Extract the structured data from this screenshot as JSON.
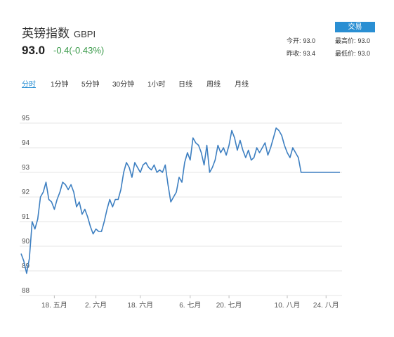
{
  "header": {
    "name": "英镑指数",
    "code": "GBPI",
    "price": "93.0",
    "change": "-0.4(-0.43%)",
    "trade_label": "交易",
    "stats": [
      {
        "label": "今开:",
        "value": "93.0"
      },
      {
        "label": "最高价:",
        "value": "93.0"
      },
      {
        "label": "昨收:",
        "value": "93.4"
      },
      {
        "label": "最低价:",
        "value": "93.0"
      }
    ]
  },
  "tabs": [
    "分时",
    "1分钟",
    "5分钟",
    "30分钟",
    "1小时",
    "日线",
    "周线",
    "月线"
  ],
  "active_tab": 0,
  "colors": {
    "line": "#3d7fc1",
    "accent": "#2a8fd3",
    "down": "#3a9a4a",
    "grid": "#e4e4e4"
  },
  "chart_data": {
    "type": "line",
    "title": "",
    "xlabel": "",
    "ylabel": "",
    "ylim": [
      88,
      95.5
    ],
    "yticks": [
      88,
      89,
      90,
      91,
      92,
      93,
      94,
      95
    ],
    "ytick_labels": [
      "88",
      "89",
      "90",
      "91",
      "92",
      "93",
      "94",
      "95"
    ],
    "xticks": [
      {
        "label": "18. 五月",
        "x": 12
      },
      {
        "label": "2. 六月",
        "x": 27
      },
      {
        "label": "18. 六月",
        "x": 43
      },
      {
        "label": "6. 七月",
        "x": 61
      },
      {
        "label": "20. 七月",
        "x": 75
      },
      {
        "label": "10. 八月",
        "x": 96
      },
      {
        "label": "24. 八月",
        "x": 110
      }
    ],
    "series": [
      {
        "x": [
          0,
          1,
          2,
          3,
          4,
          5,
          6,
          7,
          8,
          9,
          10,
          11,
          12,
          13,
          14,
          15,
          16,
          17,
          18,
          19,
          20,
          21,
          22,
          23,
          24,
          25,
          26,
          27,
          28,
          29,
          30,
          31,
          32,
          33,
          34,
          35,
          36,
          37,
          38,
          39,
          40,
          41,
          42,
          43,
          44,
          45,
          46,
          47,
          48,
          49,
          50,
          51,
          52,
          53,
          54,
          55,
          56,
          57,
          58,
          59,
          60,
          61,
          62,
          63,
          64,
          65,
          66,
          67,
          68,
          69,
          70,
          71,
          72,
          73,
          74,
          75,
          76,
          77,
          78,
          79,
          80,
          81,
          82,
          83,
          84,
          85,
          86,
          87,
          88,
          89,
          90,
          91,
          92,
          93,
          94,
          95,
          96,
          97,
          98,
          99,
          100,
          101,
          102,
          103,
          104,
          105,
          106,
          107,
          108,
          109,
          110,
          111,
          112,
          113,
          114,
          115
        ],
        "values": [
          89.7,
          89.4,
          88.9,
          89.5,
          91.0,
          90.7,
          91.1,
          92.0,
          92.2,
          92.6,
          91.9,
          91.8,
          91.5,
          91.9,
          92.2,
          92.6,
          92.5,
          92.3,
          92.5,
          92.2,
          91.6,
          91.8,
          91.3,
          91.5,
          91.2,
          90.8,
          90.5,
          90.7,
          90.6,
          90.6,
          91.0,
          91.5,
          91.9,
          91.6,
          91.9,
          91.9,
          92.3,
          93.0,
          93.4,
          93.2,
          92.8,
          93.4,
          93.2,
          93.0,
          93.3,
          93.4,
          93.2,
          93.1,
          93.3,
          93.0,
          93.1,
          93.0,
          93.3,
          92.5,
          91.8,
          92.0,
          92.2,
          92.8,
          92.6,
          93.4,
          93.8,
          93.5,
          94.4,
          94.2,
          94.1,
          93.8,
          93.3,
          94.1,
          93.0,
          93.2,
          93.5,
          94.1,
          93.8,
          94.0,
          93.7,
          94.1,
          94.7,
          94.4,
          93.9,
          94.3,
          93.9,
          93.6,
          93.9,
          93.5,
          93.6,
          94.0,
          93.8,
          94.0,
          94.2,
          93.7,
          94.0,
          94.4,
          94.8,
          94.7,
          94.5,
          94.1,
          93.8,
          93.6,
          94.0,
          93.8,
          93.6,
          93.0,
          93.0,
          93.0,
          93.0,
          93.0,
          93.0,
          93.0,
          93.0,
          93.0,
          93.0,
          93.0,
          93.0,
          93.0,
          93.0,
          93.0
        ]
      }
    ],
    "grid": true,
    "legend": "none"
  }
}
